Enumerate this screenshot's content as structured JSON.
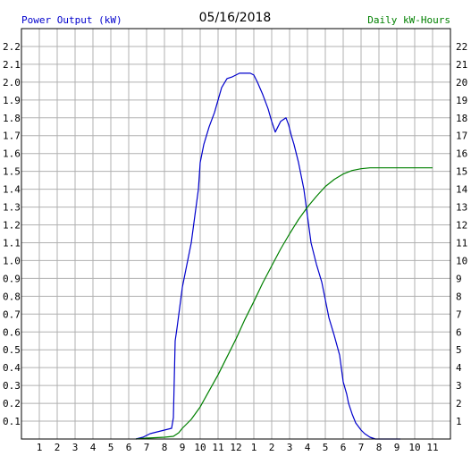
{
  "chart_data": {
    "type": "line",
    "title": "05/16/2018",
    "left_axis_label": "Power Output (kW)",
    "right_axis_label": "Daily kW-Hours",
    "colors": {
      "power": "#0000cc",
      "energy": "#008000",
      "left_label": "#0000cc",
      "right_label": "#008000",
      "grid": "#b0b0b0",
      "axis": "#000000"
    },
    "x_range_hours": [
      0,
      24
    ],
    "x_tick_labels": [
      "1",
      "2",
      "3",
      "4",
      "5",
      "6",
      "7",
      "8",
      "9",
      "10",
      "11",
      "12",
      "1",
      "2",
      "3",
      "4",
      "5",
      "6",
      "7",
      "8",
      "9",
      "10",
      "11"
    ],
    "left_ylim": [
      0,
      2.3
    ],
    "left_ticks": [
      "0.1",
      "0.2",
      "0.3",
      "0.4",
      "0.5",
      "0.6",
      "0.7",
      "0.8",
      "0.9",
      "1.0",
      "1.1",
      "1.2",
      "1.3",
      "1.4",
      "1.5",
      "1.6",
      "1.7",
      "1.8",
      "1.9",
      "2.0",
      "2.1",
      "2.2"
    ],
    "right_ylim": [
      0,
      23
    ],
    "right_ticks": [
      "1",
      "2",
      "3",
      "4",
      "5",
      "6",
      "7",
      "8",
      "9",
      "10",
      "11",
      "12",
      "13",
      "14",
      "15",
      "16",
      "17",
      "18",
      "19",
      "20",
      "21",
      "22"
    ],
    "grid": true,
    "series": [
      {
        "name": "Power Output (kW)",
        "axis": "left",
        "x": [
          6.4,
          6.8,
          7.2,
          7.6,
          8.0,
          8.4,
          8.5,
          8.6,
          8.7,
          9.0,
          9.2,
          9.5,
          9.7,
          9.9,
          10.0,
          10.2,
          10.5,
          10.8,
          11.0,
          11.2,
          11.5,
          11.8,
          12.0,
          12.2,
          12.5,
          12.8,
          13.0,
          13.2,
          13.5,
          13.8,
          14.0,
          14.2,
          14.5,
          14.8,
          14.95,
          15.1,
          15.25,
          15.5,
          15.8,
          16.0,
          16.2,
          16.5,
          16.8,
          17.0,
          17.2,
          17.5,
          17.8,
          18.0,
          18.2,
          18.3,
          18.5,
          18.7,
          19.0,
          19.2,
          19.5,
          19.8,
          20.0,
          20.2,
          20.5,
          20.8,
          21.0,
          21.2
        ],
        "y": [
          0.0,
          0.01,
          0.03,
          0.04,
          0.05,
          0.06,
          0.12,
          0.55,
          0.62,
          0.85,
          0.95,
          1.1,
          1.25,
          1.4,
          1.55,
          1.65,
          1.75,
          1.83,
          1.9,
          1.97,
          2.02,
          2.03,
          2.04,
          2.05,
          2.05,
          2.05,
          2.04,
          2.0,
          1.93,
          1.85,
          1.78,
          1.72,
          1.78,
          1.8,
          1.76,
          1.7,
          1.65,
          1.55,
          1.4,
          1.25,
          1.1,
          0.98,
          0.88,
          0.78,
          0.68,
          0.58,
          0.47,
          0.32,
          0.25,
          0.2,
          0.14,
          0.09,
          0.05,
          0.03,
          0.01,
          0.0,
          0.0,
          0.0,
          0.0,
          0.0,
          0.0,
          0.0
        ]
      },
      {
        "name": "Daily kW-Hours",
        "axis": "right",
        "x": [
          6.4,
          7.0,
          8.0,
          8.5,
          8.8,
          9.0,
          9.5,
          10.0,
          10.5,
          11.0,
          11.5,
          12.0,
          12.5,
          13.0,
          13.5,
          14.0,
          14.5,
          15.0,
          15.5,
          16.0,
          16.5,
          17.0,
          17.5,
          18.0,
          18.5,
          19.0,
          19.5,
          20.0,
          21.0,
          22.0,
          23.0
        ],
        "y": [
          0.0,
          0.05,
          0.1,
          0.15,
          0.35,
          0.6,
          1.1,
          1.8,
          2.7,
          3.6,
          4.6,
          5.6,
          6.7,
          7.7,
          8.75,
          9.7,
          10.65,
          11.5,
          12.3,
          13.0,
          13.6,
          14.15,
          14.55,
          14.85,
          15.05,
          15.15,
          15.2,
          15.2,
          15.2,
          15.2,
          15.2
        ]
      }
    ]
  }
}
